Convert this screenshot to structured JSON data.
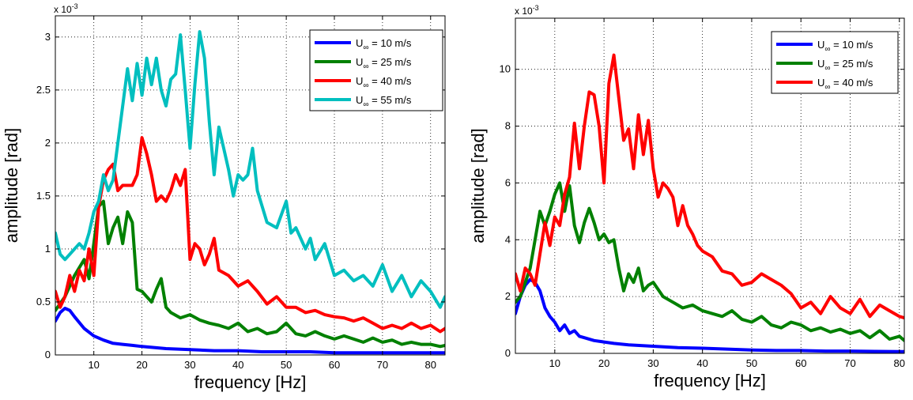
{
  "chart_data": [
    {
      "type": "line",
      "title": "",
      "xlabel": "frequency [Hz]",
      "ylabel": "amplitude [rad]",
      "y_multiplier": "x 10",
      "y_multiplier_exp": "-3",
      "xlim": [
        2,
        83
      ],
      "ylim": [
        0,
        3.2
      ],
      "xticks": [
        "10",
        "20",
        "30",
        "40",
        "50",
        "60",
        "70",
        "80"
      ],
      "xtick_values": [
        10,
        20,
        30,
        40,
        50,
        60,
        70,
        80
      ],
      "yticks": [
        "0",
        "0.5",
        "1",
        "1.5",
        "2",
        "2.5",
        "3"
      ],
      "ytick_values": [
        0,
        0.5,
        1,
        1.5,
        2,
        2.5,
        3
      ],
      "grid": true,
      "legend_position": "top-right",
      "series": [
        {
          "name_prefix": "U",
          "name_sub": "∞",
          "name_suffix": " = 10 m/s",
          "color": "#0000ff",
          "x": [
            2,
            3,
            4,
            5,
            6,
            8,
            10,
            12,
            14,
            16,
            18,
            20,
            25,
            30,
            35,
            40,
            45,
            50,
            55,
            60,
            65,
            70,
            75,
            80,
            83
          ],
          "y": [
            0.32,
            0.4,
            0.44,
            0.42,
            0.36,
            0.25,
            0.18,
            0.14,
            0.11,
            0.1,
            0.09,
            0.08,
            0.06,
            0.05,
            0.04,
            0.04,
            0.03,
            0.03,
            0.03,
            0.02,
            0.02,
            0.02,
            0.02,
            0.02,
            0.02
          ]
        },
        {
          "name_prefix": "U",
          "name_sub": "∞",
          "name_suffix": " = 25 m/s",
          "color": "#008000",
          "x": [
            2,
            4,
            6,
            8,
            9,
            10,
            11,
            12,
            13,
            14,
            15,
            16,
            17,
            18,
            19,
            20,
            21,
            22,
            23,
            24,
            25,
            26,
            28,
            30,
            32,
            34,
            36,
            38,
            40,
            42,
            44,
            46,
            48,
            50,
            52,
            54,
            56,
            58,
            60,
            62,
            64,
            66,
            68,
            70,
            72,
            74,
            76,
            78,
            80,
            82,
            83
          ],
          "y": [
            0.42,
            0.55,
            0.75,
            0.9,
            0.72,
            1.05,
            1.4,
            1.45,
            1.05,
            1.2,
            1.3,
            1.05,
            1.35,
            1.25,
            0.62,
            0.6,
            0.55,
            0.5,
            0.62,
            0.72,
            0.45,
            0.4,
            0.35,
            0.38,
            0.33,
            0.3,
            0.28,
            0.25,
            0.3,
            0.22,
            0.25,
            0.2,
            0.22,
            0.3,
            0.2,
            0.18,
            0.22,
            0.18,
            0.15,
            0.18,
            0.15,
            0.12,
            0.16,
            0.12,
            0.14,
            0.1,
            0.12,
            0.1,
            0.1,
            0.08,
            0.09
          ]
        },
        {
          "name_prefix": "U",
          "name_sub": "∞",
          "name_suffix": " = 40 m/s",
          "color": "#ff0000",
          "x": [
            2,
            3,
            4,
            5,
            6,
            7,
            8,
            9,
            10,
            11,
            12,
            13,
            14,
            15,
            16,
            17,
            18,
            19,
            20,
            21,
            22,
            23,
            24,
            25,
            26,
            27,
            28,
            29,
            30,
            31,
            32,
            33,
            34,
            35,
            36,
            38,
            40,
            42,
            44,
            46,
            48,
            50,
            52,
            54,
            56,
            58,
            60,
            62,
            64,
            66,
            68,
            70,
            72,
            74,
            76,
            78,
            80,
            82,
            83
          ],
          "y": [
            0.6,
            0.45,
            0.55,
            0.75,
            0.6,
            0.8,
            0.7,
            1.0,
            0.75,
            1.4,
            1.65,
            1.75,
            1.8,
            1.55,
            1.6,
            1.6,
            1.6,
            1.7,
            2.05,
            1.9,
            1.7,
            1.45,
            1.5,
            1.45,
            1.55,
            1.7,
            1.6,
            1.75,
            0.9,
            1.05,
            1.0,
            0.85,
            0.95,
            1.1,
            0.8,
            0.75,
            0.65,
            0.7,
            0.6,
            0.48,
            0.55,
            0.45,
            0.45,
            0.4,
            0.42,
            0.38,
            0.36,
            0.35,
            0.32,
            0.35,
            0.3,
            0.25,
            0.28,
            0.25,
            0.3,
            0.25,
            0.28,
            0.22,
            0.25
          ]
        },
        {
          "name_prefix": "U",
          "name_sub": "∞",
          "name_suffix": " = 55 m/s",
          "color": "#00bfbf",
          "x": [
            2,
            3,
            4,
            5,
            6,
            7,
            8,
            9,
            10,
            11,
            12,
            13,
            14,
            15,
            16,
            17,
            18,
            19,
            20,
            21,
            22,
            23,
            24,
            25,
            26,
            27,
            28,
            29,
            30,
            31,
            32,
            33,
            34,
            35,
            36,
            37,
            38,
            39,
            40,
            41,
            42,
            43,
            44,
            45,
            46,
            48,
            50,
            51,
            52,
            54,
            55,
            56,
            58,
            60,
            62,
            64,
            66,
            68,
            70,
            72,
            74,
            76,
            78,
            80,
            82,
            83
          ],
          "y": [
            1.15,
            0.95,
            0.9,
            0.95,
            1.0,
            1.05,
            1.0,
            1.15,
            1.35,
            1.45,
            1.7,
            1.55,
            1.65,
            2.0,
            2.35,
            2.7,
            2.4,
            2.75,
            2.45,
            2.8,
            2.55,
            2.8,
            2.5,
            2.35,
            2.6,
            2.65,
            3.02,
            2.5,
            1.95,
            2.55,
            3.05,
            2.8,
            2.2,
            1.7,
            2.15,
            1.95,
            1.75,
            1.5,
            1.7,
            1.65,
            1.7,
            1.95,
            1.55,
            1.4,
            1.25,
            1.2,
            1.45,
            1.15,
            1.2,
            1.0,
            1.1,
            0.9,
            1.05,
            0.75,
            0.8,
            0.7,
            0.75,
            0.65,
            0.85,
            0.6,
            0.75,
            0.55,
            0.7,
            0.6,
            0.45,
            0.55
          ]
        }
      ]
    },
    {
      "type": "line",
      "title": "",
      "xlabel": "frequency [Hz]",
      "ylabel": "amplitude [rad]",
      "y_multiplier": "x 10",
      "y_multiplier_exp": "-3",
      "xlim": [
        2,
        81
      ],
      "ylim": [
        0,
        11.8
      ],
      "xticks": [
        "10",
        "20",
        "30",
        "40",
        "50",
        "60",
        "70",
        "80"
      ],
      "xtick_values": [
        10,
        20,
        30,
        40,
        50,
        60,
        70,
        80
      ],
      "yticks": [
        "0",
        "2",
        "4",
        "6",
        "8",
        "10"
      ],
      "ytick_values": [
        0,
        2,
        4,
        6,
        8,
        10
      ],
      "grid": true,
      "legend_position": "top-right",
      "series": [
        {
          "name_prefix": "U",
          "name_sub": "∞",
          "name_suffix": " = 10 m/s",
          "color": "#0000ff",
          "x": [
            2,
            3,
            4,
            5,
            6,
            7,
            8,
            9,
            10,
            11,
            12,
            13,
            14,
            15,
            16,
            18,
            20,
            22,
            25,
            30,
            35,
            40,
            45,
            50,
            55,
            60,
            65,
            70,
            75,
            80,
            81
          ],
          "y": [
            1.4,
            2.0,
            2.4,
            2.6,
            2.5,
            2.2,
            1.6,
            1.3,
            1.1,
            0.8,
            1.0,
            0.7,
            0.8,
            0.6,
            0.55,
            0.45,
            0.4,
            0.35,
            0.3,
            0.25,
            0.2,
            0.18,
            0.15,
            0.12,
            0.1,
            0.1,
            0.08,
            0.08,
            0.07,
            0.06,
            0.06
          ]
        },
        {
          "name_prefix": "U",
          "name_sub": "∞",
          "name_suffix": " = 25 m/s",
          "color": "#008000",
          "x": [
            2,
            3,
            4,
            5,
            6,
            7,
            8,
            9,
            10,
            11,
            12,
            13,
            14,
            15,
            16,
            17,
            18,
            19,
            20,
            21,
            22,
            23,
            24,
            25,
            26,
            27,
            28,
            29,
            30,
            32,
            34,
            36,
            38,
            40,
            42,
            44,
            46,
            48,
            50,
            52,
            54,
            56,
            58,
            60,
            62,
            64,
            66,
            68,
            70,
            72,
            74,
            76,
            78,
            80,
            81
          ],
          "y": [
            1.8,
            2.0,
            2.5,
            3.0,
            4.0,
            5.0,
            4.5,
            5.0,
            5.6,
            6.0,
            5.0,
            5.9,
            4.5,
            3.9,
            4.6,
            5.1,
            4.6,
            4.0,
            4.2,
            3.9,
            4.0,
            3.0,
            2.2,
            2.8,
            2.5,
            3.0,
            2.2,
            2.4,
            2.5,
            2.0,
            1.8,
            1.6,
            1.7,
            1.5,
            1.4,
            1.3,
            1.5,
            1.2,
            1.1,
            1.3,
            1.0,
            0.9,
            1.1,
            1.0,
            0.8,
            0.9,
            0.75,
            0.85,
            0.7,
            0.8,
            0.55,
            0.8,
            0.5,
            0.6,
            0.45
          ]
        },
        {
          "name_prefix": "U",
          "name_sub": "∞",
          "name_suffix": " = 40 m/s",
          "color": "#ff0000",
          "x": [
            2,
            3,
            4,
            5,
            6,
            7,
            8,
            9,
            10,
            11,
            12,
            13,
            14,
            15,
            16,
            17,
            18,
            19,
            20,
            21,
            22,
            23,
            24,
            25,
            26,
            27,
            28,
            29,
            30,
            31,
            32,
            33,
            34,
            35,
            36,
            37,
            38,
            39,
            40,
            42,
            44,
            46,
            48,
            50,
            52,
            54,
            56,
            58,
            60,
            62,
            64,
            66,
            68,
            70,
            72,
            74,
            76,
            78,
            80,
            81
          ],
          "y": [
            2.8,
            2.2,
            3.0,
            2.8,
            2.4,
            3.5,
            4.6,
            3.8,
            4.8,
            4.5,
            5.6,
            6.2,
            8.1,
            6.5,
            8.0,
            9.2,
            9.1,
            8.0,
            6.0,
            9.5,
            10.5,
            9.0,
            7.5,
            7.9,
            6.5,
            8.4,
            7.0,
            8.2,
            6.5,
            5.5,
            6.0,
            5.8,
            5.5,
            4.5,
            5.2,
            4.5,
            4.2,
            3.8,
            3.6,
            3.4,
            2.9,
            2.8,
            2.4,
            2.5,
            2.8,
            2.6,
            2.4,
            2.1,
            1.6,
            1.8,
            1.4,
            2.0,
            1.6,
            1.4,
            1.9,
            1.3,
            1.7,
            1.5,
            1.3,
            1.25
          ]
        }
      ]
    }
  ]
}
